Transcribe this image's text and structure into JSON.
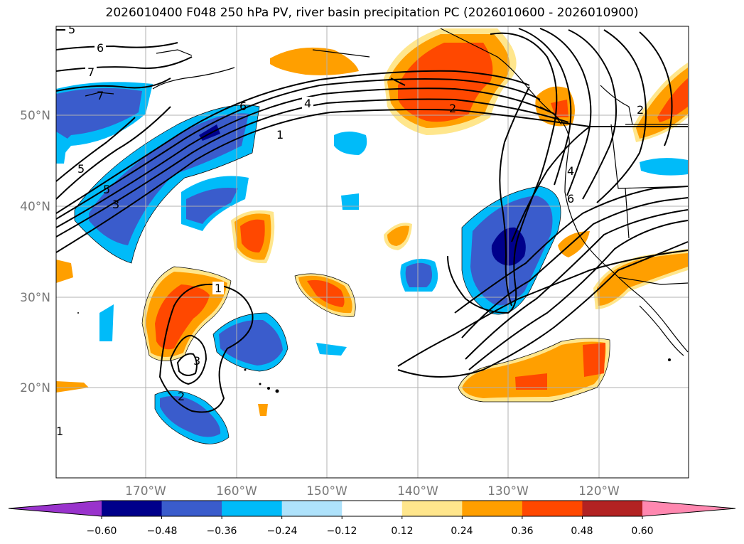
{
  "title": "2026010400 F048 250 hPa PV, river basin precipitation PC (2026010600 - 2026010900)",
  "map": {
    "lat_labels": [
      "50°N",
      "40°N",
      "30°N",
      "20°N"
    ],
    "lon_labels": [
      "170°W",
      "160°W",
      "150°W",
      "140°W",
      "130°W",
      "120°W"
    ],
    "pv_contour_labels": [
      "5",
      "6",
      "7",
      "7",
      "6",
      "4",
      "2",
      "1",
      "5",
      "5",
      "3",
      "1",
      "3",
      "2",
      "4",
      "6",
      "2",
      "1"
    ]
  },
  "colorbar": {
    "tick_labels": [
      "−0.60",
      "−0.48",
      "−0.36",
      "−0.24",
      "−0.12",
      "0.12",
      "0.24",
      "0.36",
      "0.48",
      "0.60"
    ],
    "colors": [
      "#9933cc",
      "#00008b",
      "#3a5ccc",
      "#00bbf9",
      "#aee2fb",
      "#ffffff",
      "#ffe68c",
      "#ff9f00",
      "#ff4800",
      "#b22222",
      "#ff88b0"
    ]
  }
}
